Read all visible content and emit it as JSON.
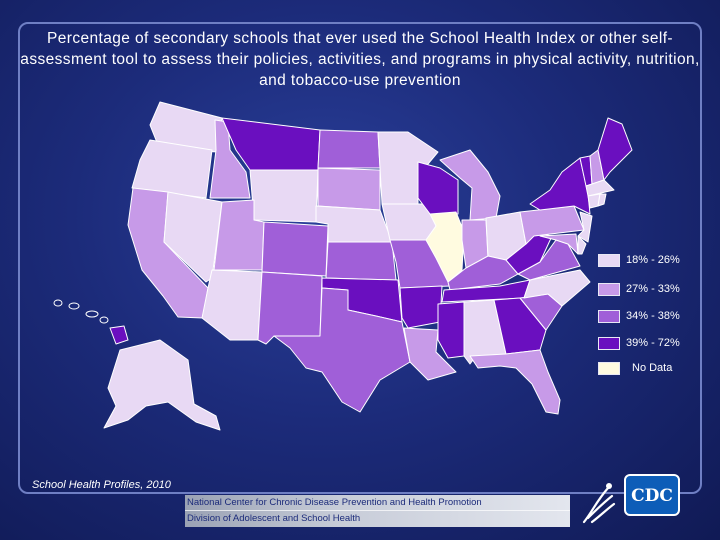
{
  "title": "Percentage of secondary schools that ever used the School Health Index or other self-assessment tool to assess their policies, activities, and programs in physical activity, nutrition, and tobacco-use prevention",
  "source": "School Health Profiles, 2010",
  "footer": {
    "line1": "National Center for Chronic Disease Prevention and Health Promotion",
    "line2": "Division of Adolescent and School Health"
  },
  "logos": {
    "cdc_text": "CDC",
    "hhs_icon": "hhs-eagle-icon"
  },
  "colors": {
    "c1": "#e8d9f4",
    "c2": "#c79ae8",
    "c3": "#a05fd8",
    "c4": "#6a0fbf",
    "nodata": "#fffbe0",
    "border": "#ffffff"
  },
  "legend": [
    {
      "label": "18% - 26%",
      "color_key": "c1"
    },
    {
      "label": "27% - 33%",
      "color_key": "c2"
    },
    {
      "label": "34% - 38%",
      "color_key": "c3"
    },
    {
      "label": "39% - 72%",
      "color_key": "c4"
    },
    {
      "label": "No Data",
      "color_key": "nodata"
    }
  ],
  "states": {
    "WA": "c1",
    "OR": "c1",
    "CA": "c2",
    "NV": "c1",
    "ID": "c2",
    "MT": "c4",
    "WY": "c1",
    "UT": "c2",
    "AZ": "c1",
    "CO": "c3",
    "NM": "c3",
    "ND": "c3",
    "SD": "c2",
    "NE": "c1",
    "KS": "c3",
    "OK": "c4",
    "TX": "c3",
    "MN": "c1",
    "IA": "c1",
    "MO": "c3",
    "AR": "c4",
    "LA": "c2",
    "WI": "c4",
    "IL": "nodata",
    "MI": "c2",
    "IN": "c2",
    "OH": "c1",
    "KY": "c3",
    "TN": "c4",
    "MS": "c4",
    "AL": "c1",
    "GA": "c4",
    "FL": "c2",
    "SC": "c3",
    "NC": "c1",
    "VA": "c3",
    "WV": "c4",
    "PA": "c2",
    "NY": "c4",
    "VT": "c4",
    "NH": "c2",
    "ME": "c4",
    "MA": "c1",
    "CT": "c1",
    "RI": "c1",
    "NJ": "c1",
    "DE": "c1",
    "MD": "c2",
    "AK": "c1",
    "HI": "c4"
  }
}
